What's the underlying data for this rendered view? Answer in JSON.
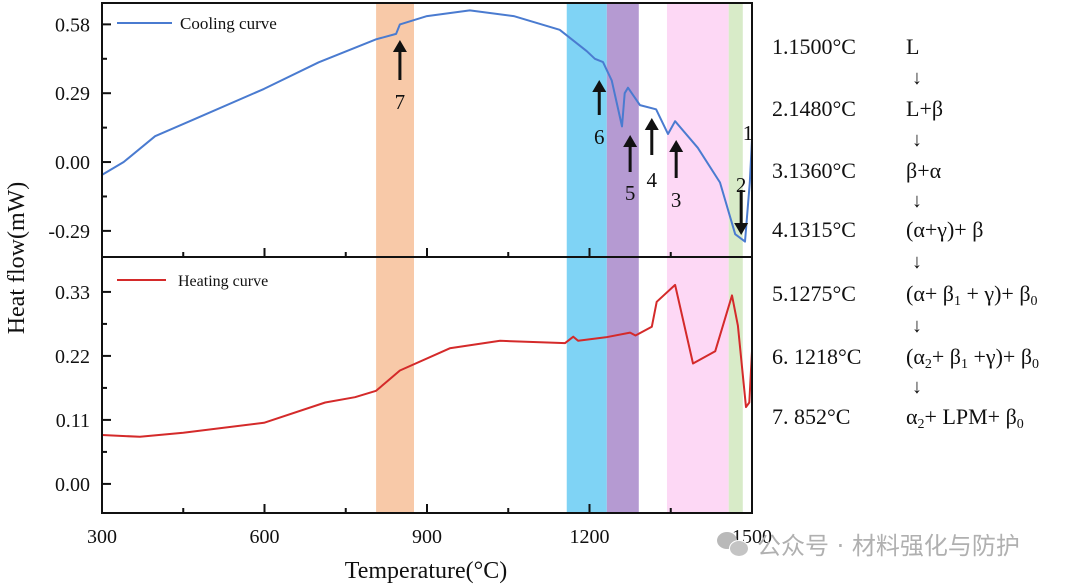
{
  "chart_data": [
    {
      "type": "line",
      "panel": "top",
      "title": "",
      "xlabel": "Temperature(°C)",
      "ylabel": "Heat flow(mW)",
      "xlim": [
        300,
        1500
      ],
      "ylim": [
        -0.4,
        0.67
      ],
      "x_ticks": [
        "300",
        "600",
        "900",
        "1200",
        "1500"
      ],
      "y_ticks": [
        "0.58",
        "0.29",
        "0.00",
        "-0.29"
      ],
      "y_tick_values": [
        0.58,
        0.29,
        0.0,
        -0.29
      ],
      "legend": {
        "position": "top-left",
        "entries": [
          "Cooling curve"
        ]
      },
      "series": [
        {
          "name": "Cooling curve",
          "color": "#4a7bd0",
          "x": [
            300,
            340,
            398,
            470,
            599,
            700,
            806,
            843,
            850,
            900,
            979,
            1060,
            1145,
            1195,
            1210,
            1225,
            1241,
            1260,
            1265,
            1271,
            1293,
            1323,
            1345,
            1358,
            1400,
            1441,
            1469,
            1487,
            1496,
            1500
          ],
          "y": [
            -0.054,
            0.0,
            0.109,
            0.18,
            0.308,
            0.42,
            0.517,
            0.54,
            0.58,
            0.615,
            0.639,
            0.615,
            0.557,
            0.467,
            0.435,
            0.421,
            0.344,
            0.15,
            0.29,
            0.313,
            0.24,
            0.222,
            0.118,
            0.172,
            0.06,
            -0.086,
            -0.304,
            -0.335,
            -0.086,
            0.095
          ]
        }
      ],
      "annotations": [
        {
          "label": "7",
          "x": 850,
          "direction": "up"
        },
        {
          "label": "6",
          "x": 1218,
          "direction": "up"
        },
        {
          "label": "5",
          "x": 1275,
          "direction": "up"
        },
        {
          "label": "4",
          "x": 1315,
          "direction": "up"
        },
        {
          "label": "3",
          "x": 1360,
          "direction": "up"
        },
        {
          "label": "2",
          "x": 1480,
          "direction": "down"
        },
        {
          "label": "1",
          "x": 1500,
          "direction": "none"
        }
      ]
    },
    {
      "type": "line",
      "panel": "bottom",
      "title": "",
      "xlabel": "Temperature(°C)",
      "ylabel": "Heat flow(mW)",
      "xlim": [
        300,
        1500
      ],
      "ylim": [
        -0.05,
        0.39
      ],
      "x_ticks": [
        "300",
        "600",
        "900",
        "1200",
        "1500"
      ],
      "y_ticks": [
        "0.33",
        "0.22",
        "0.11",
        "0.00"
      ],
      "y_tick_values": [
        0.33,
        0.22,
        0.11,
        0.0
      ],
      "legend": {
        "position": "top-left",
        "entries": [
          "Heating curve"
        ]
      },
      "series": [
        {
          "name": "Heating curve",
          "color": "#d42a2a",
          "x": [
            300,
            370,
            450,
            599,
            712,
            767,
            806,
            850,
            942,
            1035,
            1155,
            1170,
            1179,
            1230,
            1275,
            1285,
            1315,
            1324,
            1358,
            1391,
            1432,
            1463,
            1474,
            1489,
            1495,
            1500
          ],
          "y": [
            0.084,
            0.081,
            0.088,
            0.105,
            0.14,
            0.149,
            0.16,
            0.195,
            0.233,
            0.246,
            0.242,
            0.253,
            0.246,
            0.252,
            0.26,
            0.255,
            0.27,
            0.313,
            0.342,
            0.207,
            0.228,
            0.324,
            0.272,
            0.132,
            0.14,
            0.228
          ]
        }
      ]
    }
  ],
  "bands": [
    {
      "name": "band-852",
      "from": 806,
      "to": 876,
      "color": "#f8c9a8"
    },
    {
      "name": "band-1218",
      "from": 1158,
      "to": 1232,
      "color": "#7fd3f5"
    },
    {
      "name": "band-1275",
      "from": 1232,
      "to": 1291,
      "color": "#b59ad2"
    },
    {
      "name": "band-1360",
      "from": 1343,
      "to": 1457,
      "color": "#fdd8f5"
    },
    {
      "name": "band-1480",
      "from": 1457,
      "to": 1483,
      "color": "#d8ebc8"
    }
  ],
  "axis": {
    "xlabel": "Temperature(°C)",
    "ylabel": "Heat flow(mW)"
  },
  "stages": [
    {
      "temp": "1.1500°C",
      "phase_html": "L"
    },
    {
      "temp": "2.1480°C",
      "phase_html": "L+β"
    },
    {
      "temp": "3.1360°C",
      "phase_html": "β+α"
    },
    {
      "temp": "4.1315°C",
      "phase_html": "(α+γ)+ β"
    },
    {
      "temp": "5.1275°C",
      "phase_html": "(α+ β<sub>1</sub> + γ)+ β<sub>0</sub>"
    },
    {
      "temp": "6. 1218°C",
      "phase_html": "(α<sub>2</sub>+ β<sub>1</sub> +γ)+ β<sub>0</sub>"
    },
    {
      "temp": "7. 852°C",
      "phase_html": "α<sub>2</sub>+ LPM+ β<sub>0</sub>"
    }
  ],
  "stage_arrow": "↓",
  "watermark": {
    "icon": "wechat-icon",
    "text": "公众号 · 材料强化与防护"
  }
}
